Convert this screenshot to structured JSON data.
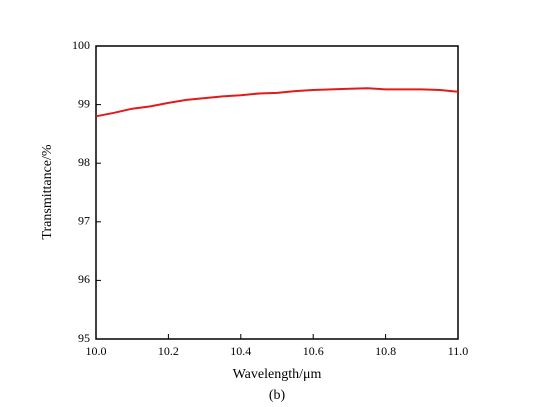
{
  "chart_data": {
    "type": "line",
    "x_label": "Wavelength/μm",
    "y_label": "Transmittance/%",
    "caption": "(b)",
    "x": [
      10.0,
      10.05,
      10.1,
      10.15,
      10.2,
      10.25,
      10.3,
      10.35,
      10.4,
      10.45,
      10.5,
      10.55,
      10.6,
      10.65,
      10.7,
      10.75,
      10.8,
      10.85,
      10.9,
      10.95,
      11.0
    ],
    "series": [
      {
        "color": "#e31a1c",
        "values": [
          98.8,
          98.86,
          98.93,
          98.97,
          99.03,
          99.08,
          99.11,
          99.14,
          99.16,
          99.19,
          99.2,
          99.23,
          99.25,
          99.26,
          99.27,
          99.28,
          99.26,
          99.26,
          99.26,
          99.25,
          99.22
        ]
      }
    ],
    "xlim": [
      10.0,
      11.0
    ],
    "xticks": [
      {
        "value": 10.0,
        "label": "10.0"
      },
      10.2,
      10.4,
      10.6,
      10.8,
      {
        "value": 11.0,
        "label": "11.0"
      }
    ],
    "ylim": [
      95,
      100
    ],
    "yticks": [
      95,
      96,
      97,
      98,
      99,
      100
    ]
  }
}
